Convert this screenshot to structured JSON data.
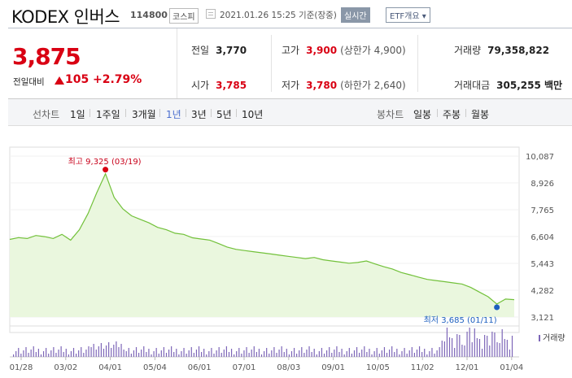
{
  "header": {
    "name": "KODEX 인버스",
    "code": "114800",
    "market": "코스피",
    "timestamp": "2021.01.26 15:25 기준(장중)",
    "realtime_label": "실시간",
    "etf_label": "ETF개요 ▾"
  },
  "quote": {
    "price": "3,875",
    "change_label": "전일대비",
    "change": "105",
    "change_pct": "+2.79%",
    "prev_close": {
      "label": "전일",
      "value": "3,770"
    },
    "open": {
      "label": "시가",
      "value": "3,785"
    },
    "high": {
      "label": "고가",
      "value": "3,900",
      "limit": "(상한가 4,900)"
    },
    "low": {
      "label": "저가",
      "value": "3,780",
      "limit": "(하한가 2,640)"
    },
    "volume": {
      "label": "거래량",
      "value": "79,358,822"
    },
    "trade_value": {
      "label": "거래대금",
      "value": "305,255 백만"
    }
  },
  "period_bar": {
    "label": "선차트",
    "periods": [
      "1일",
      "1주일",
      "3개월",
      "1년",
      "3년",
      "5년",
      "10년"
    ],
    "active": "1년",
    "candle_label": "봉차트",
    "candles": [
      "일봉",
      "주봉",
      "월봉"
    ]
  },
  "colors": {
    "up": "#d90013",
    "down": "#1d5fbf",
    "line": "#72c13a",
    "area": "#eaf7de",
    "volume": "#7d66b8",
    "active": "#4b6fcf"
  },
  "chart_data": {
    "type": "area",
    "x_ticks": [
      "01/28",
      "03/02",
      "04/01",
      "05/04",
      "06/01",
      "07/01",
      "08/03",
      "09/01",
      "10/05",
      "11/02",
      "12/01",
      "01/04"
    ],
    "y_ticks": [
      "10,087",
      "8,926",
      "7,765",
      "6,604",
      "5,443",
      "4,282",
      "3,121"
    ],
    "ylim": [
      3121,
      10087
    ],
    "high_annotation": "최고 9,325 (03/19)",
    "low_annotation": "최저 3,685 (01/11)",
    "volume_label": "거래량",
    "series": [
      {
        "values": [
          6480,
          6560,
          6520,
          6650,
          6600,
          6520,
          6700,
          6450,
          6900,
          7600,
          8500,
          9325,
          8300,
          7800,
          7500,
          7350,
          7200,
          7000,
          6900,
          6750,
          6700,
          6550,
          6500,
          6450,
          6300,
          6150,
          6050,
          6000,
          5950,
          5900,
          5850,
          5800,
          5750,
          5700,
          5650,
          5700,
          5600,
          5550,
          5500,
          5450,
          5480,
          5550,
          5420,
          5300,
          5200,
          5050,
          4950,
          4850,
          4750,
          4700,
          4650,
          4600,
          4550,
          4400,
          4200,
          4000,
          3685,
          3900,
          3875
        ]
      }
    ]
  }
}
